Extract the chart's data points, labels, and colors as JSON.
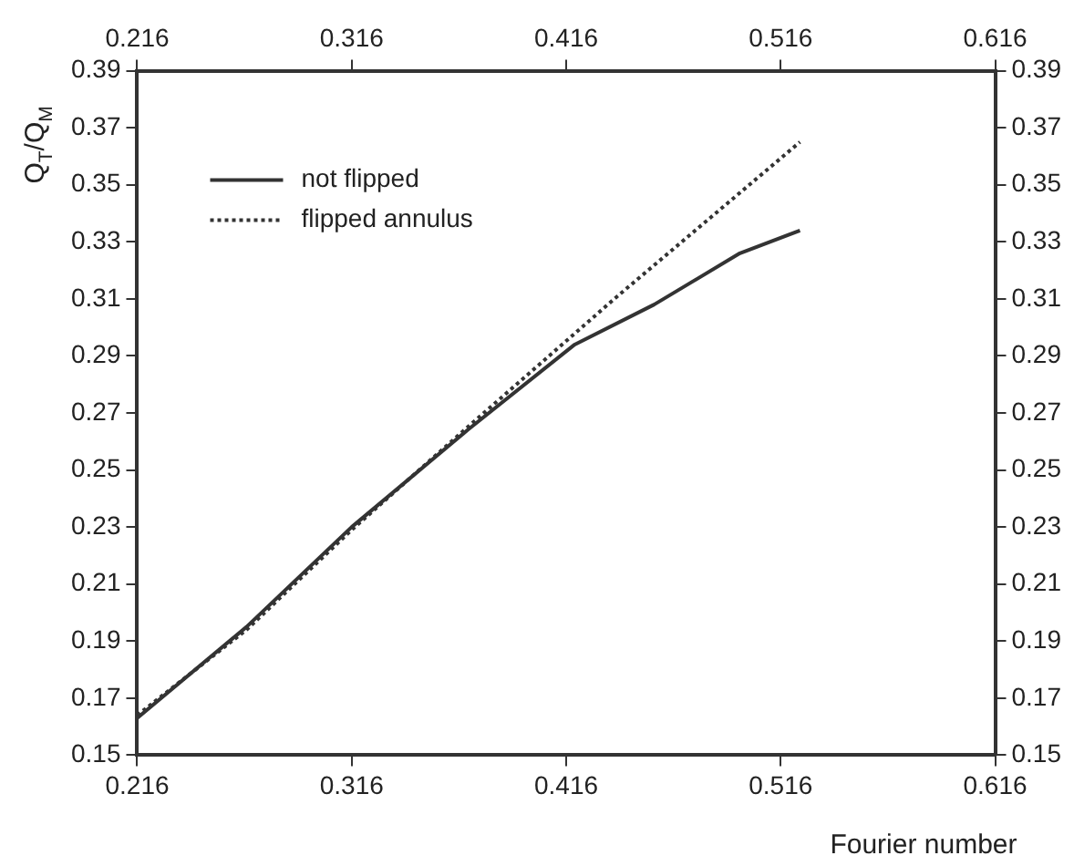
{
  "chart_data": {
    "type": "line",
    "xlabel": "Fourier number",
    "ylabel": "Q$_{T}$/Q$_{M}$",
    "xlim": [
      0.216,
      0.616
    ],
    "xticks": [
      0.216,
      0.316,
      0.416,
      0.516,
      0.616
    ],
    "x2lim": [
      0.216,
      0.616
    ],
    "x2ticks": [
      0.216,
      0.316,
      0.416,
      0.516,
      0.616
    ],
    "ylim": [
      0.15,
      0.39
    ],
    "yticks": [
      0.15,
      0.17,
      0.19,
      0.21,
      0.23,
      0.25,
      0.27,
      0.29,
      0.31,
      0.33,
      0.35,
      0.37,
      0.39
    ],
    "y2lim": [
      0.15,
      0.39
    ],
    "y2ticks": [
      0.15,
      0.17,
      0.19,
      0.21,
      0.23,
      0.25,
      0.27,
      0.29,
      0.31,
      0.33,
      0.35,
      0.37,
      0.39
    ],
    "grid": false,
    "legend": "top left",
    "marker": "none",
    "series": [
      {
        "name": "not flipped",
        "color": "#333333",
        "line_style": "solid",
        "x": [
          0.216,
          0.267,
          0.316,
          0.37,
          0.42,
          0.457,
          0.497,
          0.525
        ],
        "values": [
          0.163,
          0.195,
          0.23,
          0.264,
          0.294,
          0.308,
          0.326,
          0.334
        ]
      },
      {
        "name": "flipped annulus",
        "color": "#333333",
        "line_style": "dotted",
        "x": [
          0.216,
          0.267,
          0.316,
          0.37,
          0.44,
          0.525
        ],
        "values": [
          0.164,
          0.194,
          0.229,
          0.265,
          0.311,
          0.365
        ]
      }
    ]
  }
}
